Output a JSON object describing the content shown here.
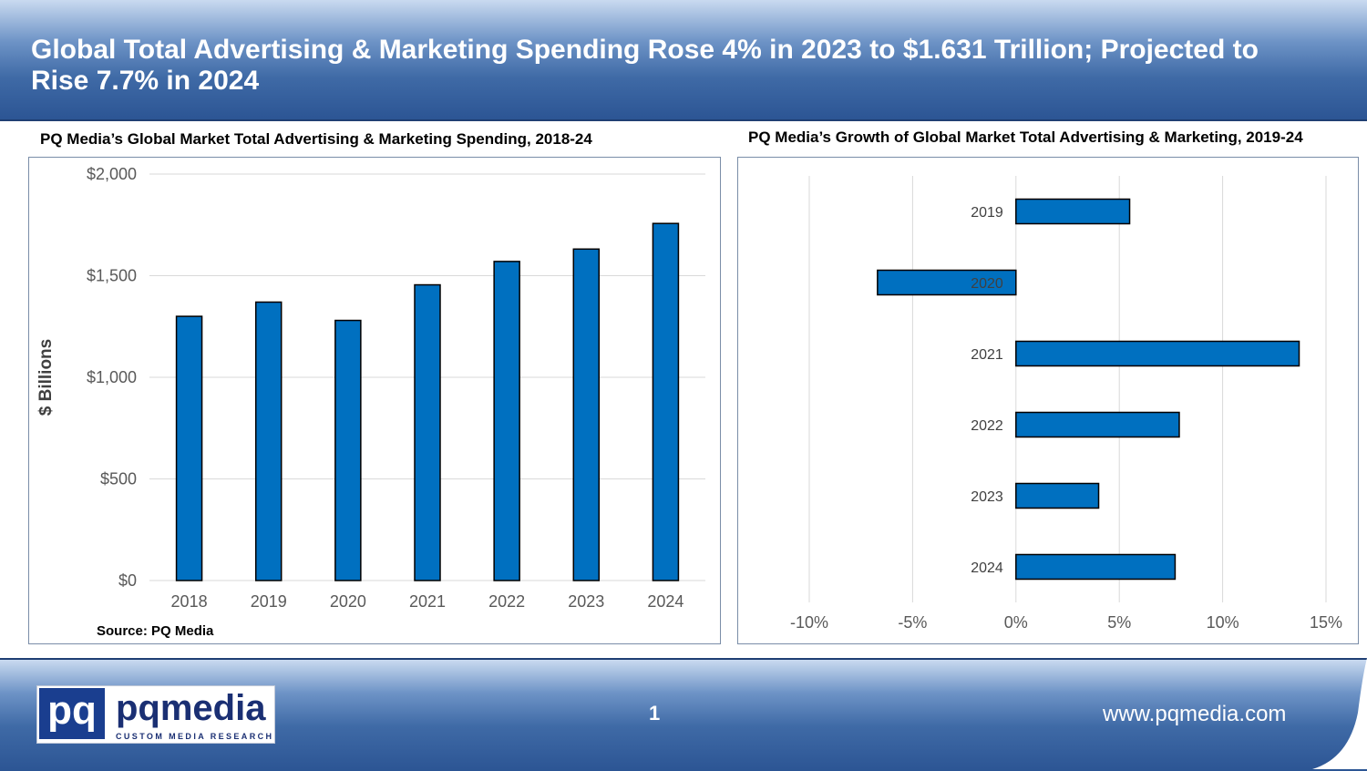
{
  "header": {
    "title": "Global Total Advertising & Marketing Spending Rose 4% in 2023 to $1.631 Trillion; Projected to Rise 7.7% in 2024"
  },
  "left_chart": {
    "title": "PQ Media’s Global Market Total Advertising & Marketing Spending, 2018-24",
    "source": "Source: PQ Media"
  },
  "right_chart": {
    "title": "PQ Media’s Growth of Global Market Total Advertising & Marketing, 2019-24"
  },
  "footer": {
    "logo_mark": "pq",
    "logo_name": "pqmedia",
    "logo_tagline": "CUSTOM MEDIA RESEARCH",
    "page_number": "1",
    "website": "www.pqmedia.com"
  },
  "colors": {
    "bar_fill": "#0070c0",
    "bar_stroke": "#000000",
    "header_dark": "#2c5594",
    "grid": "#d9d9d9"
  },
  "chart_data": [
    {
      "type": "bar",
      "title": "PQ Media’s Global Market Total Advertising & Marketing Spending, 2018-24",
      "categories": [
        "2018",
        "2019",
        "2020",
        "2021",
        "2022",
        "2023",
        "2024"
      ],
      "values": [
        1300,
        1370,
        1280,
        1455,
        1570,
        1631,
        1757
      ],
      "ylabel": "$ Billions",
      "xlabel": "",
      "ylim": [
        0,
        2000
      ],
      "y_ticks": [
        "$0",
        "$500",
        "$1,000",
        "$1,500",
        "$2,000"
      ],
      "y_tick_values": [
        0,
        500,
        1000,
        1500,
        2000
      ],
      "grid": true
    },
    {
      "type": "bar",
      "orientation": "horizontal",
      "title": "PQ Media’s Growth of Global Market Total Advertising & Marketing, 2019-24",
      "categories": [
        "2019",
        "2020",
        "2021",
        "2022",
        "2023",
        "2024"
      ],
      "values": [
        5.5,
        -6.7,
        13.7,
        7.9,
        4.0,
        7.7
      ],
      "xlim": [
        -10,
        15
      ],
      "x_ticks": [
        "-10%",
        "-5%",
        "0%",
        "5%",
        "10%",
        "15%"
      ],
      "x_tick_values": [
        -10,
        -5,
        0,
        5,
        10,
        15
      ],
      "grid": true
    }
  ]
}
